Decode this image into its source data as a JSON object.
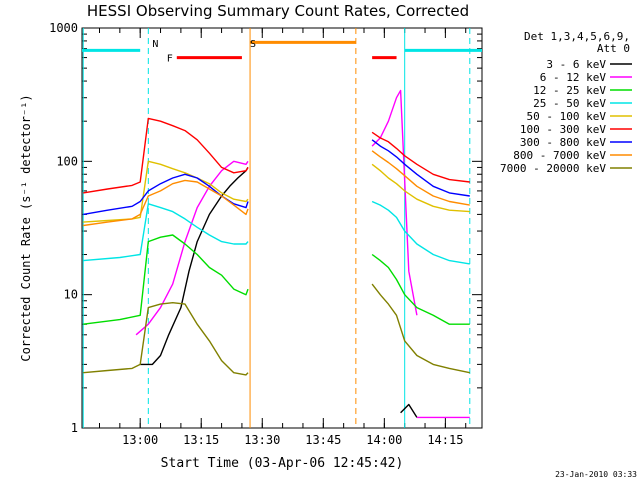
{
  "chart_data": {
    "type": "line",
    "title": "HESSI Observing Summary Count Rates, Corrected",
    "xlabel": "Start Time (03-Apr-06 12:45:42)",
    "ylabel": "Corrected Count Rate (s⁻¹ detector⁻¹)",
    "yscale": "log",
    "ylim": [
      1,
      1000
    ],
    "xlim": [
      "12:45:42",
      "14:24"
    ],
    "x_ticks": [
      "13:00",
      "13:15",
      "13:30",
      "13:45",
      "14:00",
      "14:15"
    ],
    "y_ticks": [
      "1",
      "10",
      "100",
      "1000"
    ],
    "legend_title": [
      "Det 1,3,4,5,6,9,",
      "Att 0"
    ],
    "legend_position": "right",
    "grid": false,
    "markers": [
      {
        "label": "N",
        "time": "13:02",
        "color": "#00e5e5"
      },
      {
        "label": "S",
        "time": "13:26",
        "color": "#ff8c00"
      }
    ],
    "flag_bars": [
      {
        "label": "F",
        "color": "#ff0000",
        "y": 600,
        "ranges": [
          [
            "13:09",
            "13:25"
          ],
          [
            "13:57",
            "14:03"
          ]
        ]
      },
      {
        "label": "",
        "color": "#ff8c00",
        "y": 780,
        "ranges": [
          [
            "13:27",
            "13:53"
          ]
        ]
      },
      {
        "label": "",
        "color": "#00e5e5",
        "y": 680,
        "ranges": [
          [
            "12:45:42",
            "13:00"
          ],
          [
            "14:05",
            "14:24"
          ]
        ]
      }
    ],
    "vertical_lines": [
      {
        "time": "12:46",
        "color": "#00e5e5",
        "style": "solid"
      },
      {
        "time": "13:02",
        "color": "#00e5e5",
        "style": "dashed"
      },
      {
        "time": "13:27",
        "color": "#ff8c00",
        "style": "solid"
      },
      {
        "time": "13:53",
        "color": "#ff8c00",
        "style": "dashed"
      },
      {
        "time": "14:05",
        "color": "#00e5e5",
        "style": "solid"
      },
      {
        "time": "14:21",
        "color": "#00e5e5",
        "style": "dashed"
      }
    ],
    "series": [
      {
        "name": "3 - 6 keV",
        "color": "#000000",
        "segments": [
          {
            "x": [
              "13:00",
              "13:03",
              "13:05",
              "13:07",
              "13:10",
              "13:12",
              "13:14",
              "13:17",
              "13:20",
              "13:22",
              "13:24",
              "13:26",
              "13:26:30"
            ],
            "y": [
              3,
              3,
              3.5,
              5,
              8,
              15,
              25,
              40,
              55,
              65,
              75,
              85,
              90
            ]
          },
          {
            "x": [
              "14:04",
              "14:06",
              "14:08"
            ],
            "y": [
              1.3,
              1.5,
              1.2
            ]
          }
        ]
      },
      {
        "name": "6 - 12 keV",
        "color": "#ff00ff",
        "segments": [
          {
            "x": [
              "12:59",
              "13:02",
              "13:05",
              "13:08",
              "13:11",
              "13:14",
              "13:17",
              "13:20",
              "13:23",
              "13:26",
              "13:26:30"
            ],
            "y": [
              5,
              6,
              8,
              12,
              25,
              45,
              65,
              85,
              100,
              95,
              100
            ]
          },
          {
            "x": [
              "13:57",
              "13:59",
              "14:01",
              "14:03",
              "14:04",
              "14:06",
              "14:08"
            ],
            "y": [
              130,
              150,
              200,
              300,
              340,
              15,
              7
            ]
          },
          {
            "x": [
              "14:08",
              "14:21"
            ],
            "y": [
              1.2,
              1.2
            ]
          }
        ]
      },
      {
        "name": "12 - 25 keV",
        "color": "#00dd00",
        "segments": [
          {
            "x": [
              "12:46",
              "12:55",
              "13:00",
              "13:02",
              "13:05",
              "13:08",
              "13:11",
              "13:14",
              "13:17",
              "13:20",
              "13:23",
              "13:26",
              "13:26:30"
            ],
            "y": [
              6,
              6.5,
              7,
              25,
              27,
              28,
              24,
              20,
              16,
              14,
              11,
              10,
              11
            ]
          },
          {
            "x": [
              "13:57",
              "13:59",
              "14:01",
              "14:03",
              "14:05",
              "14:08",
              "14:12",
              "14:16",
              "14:21"
            ],
            "y": [
              20,
              18,
              16,
              13,
              10,
              8,
              7,
              6,
              6
            ]
          }
        ]
      },
      {
        "name": "25 - 50 keV",
        "color": "#00e5e5",
        "segments": [
          {
            "x": [
              "12:46",
              "12:55",
              "13:00",
              "13:02",
              "13:05",
              "13:08",
              "13:11",
              "13:14",
              "13:17",
              "13:20",
              "13:23",
              "13:26",
              "13:26:30"
            ],
            "y": [
              18,
              19,
              20,
              48,
              45,
              42,
              37,
              32,
              28,
              25,
              24,
              24,
              25
            ]
          },
          {
            "x": [
              "13:57",
              "13:59",
              "14:01",
              "14:03",
              "14:05",
              "14:08",
              "14:12",
              "14:16",
              "14:21"
            ],
            "y": [
              50,
              47,
              43,
              38,
              30,
              24,
              20,
              18,
              17
            ]
          }
        ]
      },
      {
        "name": "50 - 100 keV",
        "color": "#e0c000",
        "segments": [
          {
            "x": [
              "12:46",
              "12:52",
              "12:58",
              "13:00",
              "13:02",
              "13:05",
              "13:08",
              "13:11",
              "13:14",
              "13:17",
              "13:20",
              "13:23",
              "13:26",
              "13:26:30"
            ],
            "y": [
              35,
              36,
              37,
              38,
              100,
              95,
              88,
              82,
              75,
              68,
              58,
              52,
              50,
              52
            ]
          },
          {
            "x": [
              "13:57",
              "13:59",
              "14:01",
              "14:03",
              "14:05",
              "14:08",
              "14:12",
              "14:16",
              "14:21"
            ],
            "y": [
              95,
              85,
              75,
              68,
              60,
              52,
              46,
              43,
              42
            ]
          }
        ]
      },
      {
        "name": "100 - 300 keV",
        "color": "#ff0000",
        "segments": [
          {
            "x": [
              "12:46",
              "12:52",
              "12:58",
              "13:00",
              "13:02",
              "13:05",
              "13:08",
              "13:11",
              "13:14",
              "13:17",
              "13:20",
              "13:23",
              "13:26",
              "13:26:30"
            ],
            "y": [
              58,
              62,
              66,
              70,
              210,
              200,
              185,
              170,
              145,
              115,
              90,
              82,
              85,
              90
            ]
          },
          {
            "x": [
              "13:57",
              "13:59",
              "14:01",
              "14:03",
              "14:05",
              "14:08",
              "14:12",
              "14:16",
              "14:21"
            ],
            "y": [
              165,
              150,
              140,
              125,
              110,
              95,
              80,
              73,
              70
            ]
          }
        ]
      },
      {
        "name": "300 - 800 keV",
        "color": "#0000ff",
        "segments": [
          {
            "x": [
              "12:46",
              "12:52",
              "12:58",
              "13:00",
              "13:02",
              "13:05",
              "13:08",
              "13:11",
              "13:14",
              "13:17",
              "13:20",
              "13:23",
              "13:26",
              "13:26:30"
            ],
            "y": [
              40,
              43,
              46,
              50,
              60,
              68,
              75,
              80,
              75,
              65,
              55,
              48,
              45,
              50
            ]
          },
          {
            "x": [
              "13:57",
              "13:59",
              "14:01",
              "14:03",
              "14:05",
              "14:08",
              "14:12",
              "14:16",
              "14:21"
            ],
            "y": [
              145,
              130,
              120,
              108,
              95,
              80,
              65,
              58,
              55
            ]
          }
        ]
      },
      {
        "name": "800 - 7000 keV",
        "color": "#ff8c00",
        "segments": [
          {
            "x": [
              "12:46",
              "12:52",
              "12:58",
              "13:00",
              "13:02",
              "13:05",
              "13:08",
              "13:11",
              "13:14",
              "13:17",
              "13:20",
              "13:23",
              "13:26",
              "13:26:30"
            ],
            "y": [
              33,
              35,
              37,
              40,
              55,
              60,
              68,
              72,
              70,
              62,
              55,
              47,
              40,
              44
            ]
          },
          {
            "x": [
              "13:57",
              "13:59",
              "14:01",
              "14:03",
              "14:05",
              "14:08",
              "14:12",
              "14:16",
              "14:21"
            ],
            "y": [
              120,
              108,
              98,
              88,
              78,
              65,
              55,
              50,
              47
            ]
          }
        ]
      },
      {
        "name": "7000 - 20000 keV",
        "color": "#808000",
        "segments": [
          {
            "x": [
              "12:46",
              "12:52",
              "12:58",
              "13:00",
              "13:02",
              "13:05",
              "13:08",
              "13:11",
              "13:14",
              "13:17",
              "13:20",
              "13:23",
              "13:26",
              "13:26:30"
            ],
            "y": [
              2.6,
              2.7,
              2.8,
              3,
              8,
              8.5,
              8.7,
              8.5,
              6,
              4.5,
              3.2,
              2.6,
              2.5,
              2.6
            ]
          },
          {
            "x": [
              "13:57",
              "13:59",
              "14:01",
              "14:03",
              "14:05",
              "14:08",
              "14:12",
              "14:16",
              "14:21"
            ],
            "y": [
              12,
              10,
              8.5,
              7,
              4.5,
              3.5,
              3,
              2.8,
              2.6
            ]
          }
        ]
      }
    ]
  },
  "footer": {
    "timestamp": "23-Jan-2010 03:33"
  }
}
